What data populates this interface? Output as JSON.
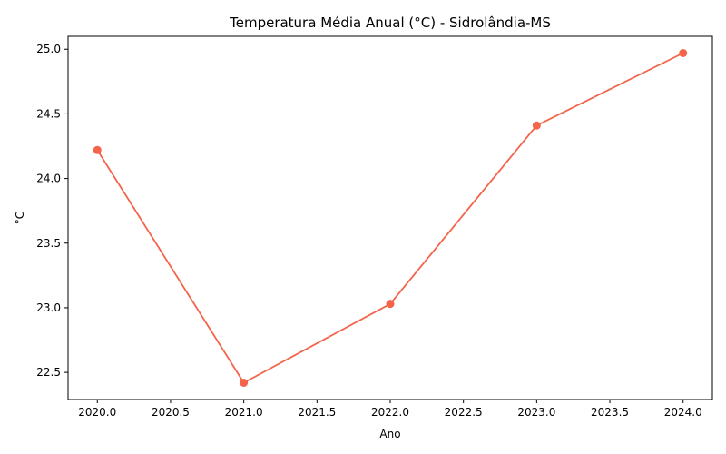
{
  "chart_data": {
    "type": "line",
    "title": "Temperatura Média Anual (°C) - Sidrolândia-MS",
    "xlabel": "Ano",
    "ylabel": "°C",
    "x": [
      2020,
      2021,
      2022,
      2023,
      2024
    ],
    "series": [
      {
        "values": [
          24.22,
          22.42,
          23.03,
          24.41,
          24.97
        ],
        "color": "#f4634a"
      }
    ],
    "xlim": [
      2019.8,
      2024.2
    ],
    "ylim": [
      22.29,
      25.1
    ],
    "x_ticks": [
      "2020.0",
      "2020.5",
      "2021.0",
      "2021.5",
      "2022.0",
      "2022.5",
      "2023.0",
      "2023.5",
      "2024.0"
    ],
    "y_ticks": [
      "22.5",
      "23.0",
      "23.5",
      "24.0",
      "24.5",
      "25.0"
    ],
    "grid": false,
    "legend": "none"
  }
}
